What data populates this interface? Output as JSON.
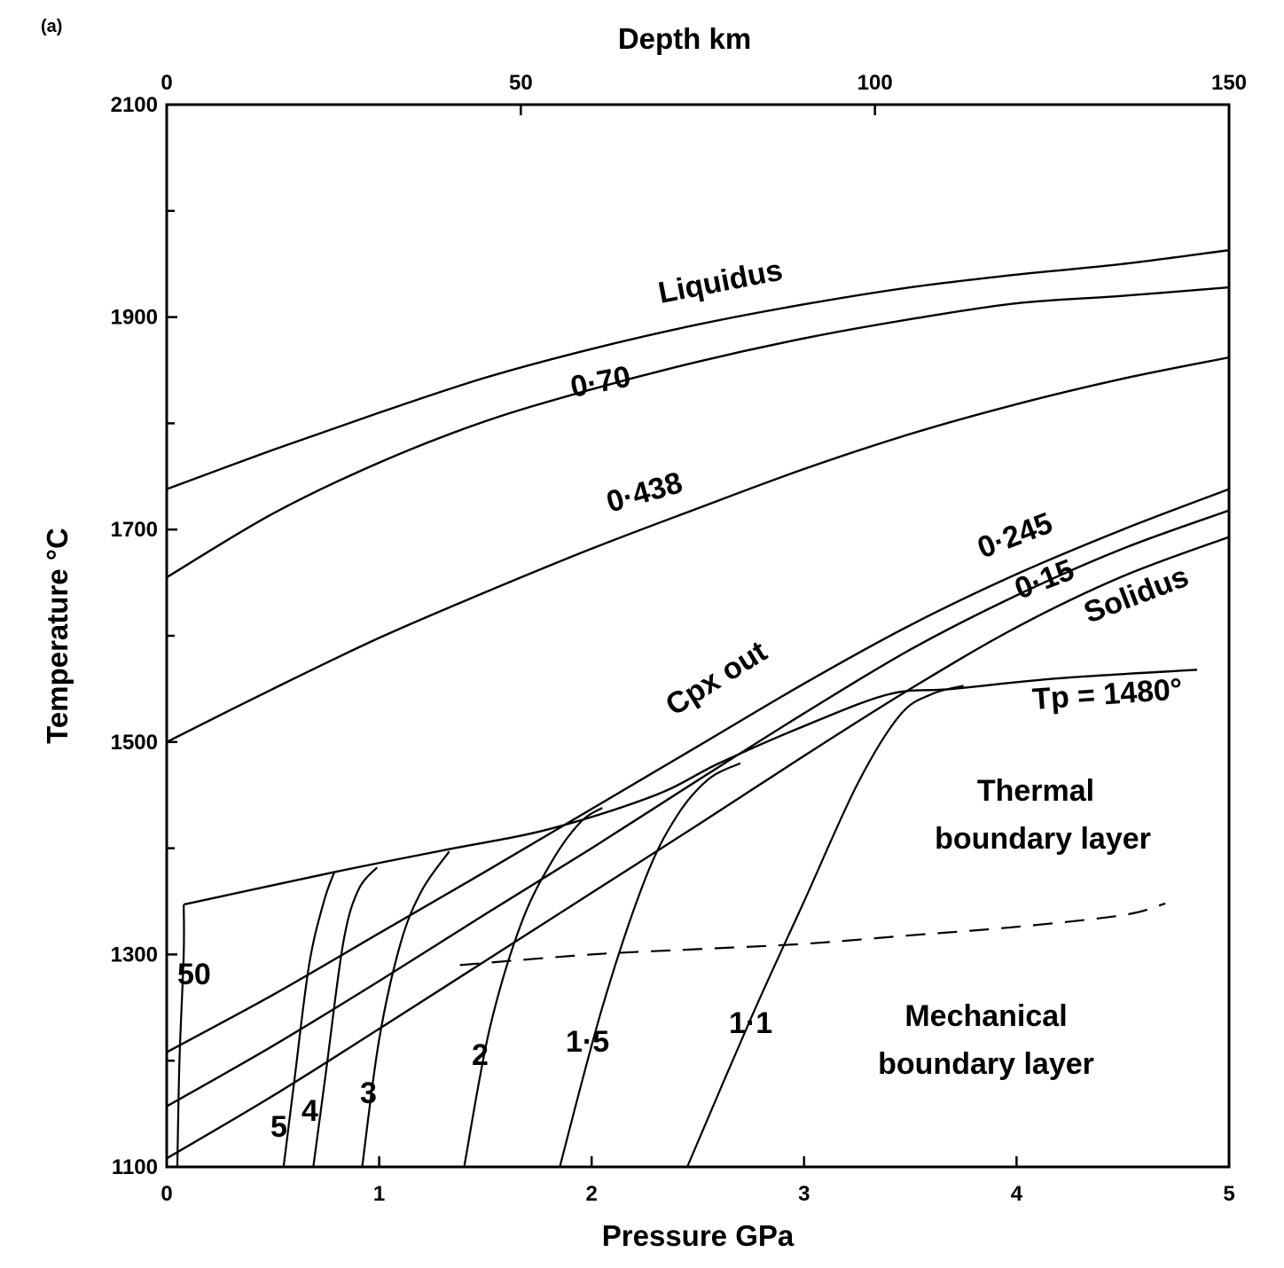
{
  "panel_label": "(a)",
  "chart_data": {
    "type": "line",
    "xlabel": "Pressure GPa",
    "x2label": "Depth km",
    "ylabel": "Temperature °C",
    "xlim": [
      0,
      5
    ],
    "x2lim": [
      0,
      150
    ],
    "ylim": [
      1100,
      2100
    ],
    "x_ticks": [
      0,
      1,
      2,
      3,
      4,
      5
    ],
    "x2_ticks": [
      0,
      50,
      100,
      150
    ],
    "y_ticks": [
      1100,
      1300,
      1500,
      1700,
      1900,
      2100
    ],
    "y_minor_ticks": [
      1200,
      1400,
      1600,
      1800,
      2000
    ],
    "grid": false,
    "melt_fraction_contours": [
      {
        "label": "Liquidus",
        "x": [
          0,
          0.5,
          1,
          1.5,
          2,
          2.5,
          3,
          3.5,
          4,
          4.5,
          5
        ],
        "y": [
          1738,
          1775,
          1810,
          1843,
          1870,
          1893,
          1912,
          1928,
          1940,
          1950,
          1963
        ]
      },
      {
        "label": "0·70",
        "x": [
          0,
          0.5,
          1,
          1.5,
          2,
          2.5,
          3,
          3.5,
          4,
          4.5,
          5
        ],
        "y": [
          1655,
          1715,
          1763,
          1802,
          1832,
          1858,
          1880,
          1898,
          1913,
          1920,
          1928
        ]
      },
      {
        "label": "0·438",
        "x": [
          0,
          0.5,
          1,
          1.5,
          2,
          2.5,
          3,
          3.5,
          4,
          4.5,
          5
        ],
        "y": [
          1500,
          1550,
          1598,
          1641,
          1682,
          1720,
          1757,
          1790,
          1818,
          1842,
          1862
        ]
      },
      {
        "label": "0·245",
        "x": [
          0,
          0.5,
          1,
          1.5,
          2,
          2.5,
          3,
          3.5,
          4,
          4.5,
          5
        ],
        "y": [
          1208,
          1262,
          1320,
          1378,
          1437,
          1496,
          1555,
          1610,
          1658,
          1700,
          1738
        ]
      },
      {
        "label": "0·15",
        "x": [
          0,
          0.5,
          1,
          1.5,
          2,
          2.5,
          3,
          3.5,
          4,
          4.5,
          5
        ],
        "y": [
          1157,
          1214,
          1275,
          1338,
          1400,
          1464,
          1527,
          1587,
          1638,
          1682,
          1718
        ]
      },
      {
        "label": "Solidus",
        "x": [
          0,
          0.5,
          1,
          1.5,
          2,
          2.5,
          3,
          3.5,
          4,
          4.5,
          5
        ],
        "y": [
          1108,
          1167,
          1230,
          1294,
          1358,
          1422,
          1487,
          1550,
          1608,
          1656,
          1693
        ]
      }
    ],
    "adiabat": {
      "label": "Tp = 1480°",
      "x": [
        0.08,
        0.8,
        1.3,
        1.8,
        2.3,
        2.6,
        3.0,
        3.4,
        3.7,
        4.2,
        4.85
      ],
      "y": [
        1347,
        1378,
        1398,
        1418,
        1450,
        1480,
        1515,
        1545,
        1550,
        1560,
        1568
      ]
    },
    "lithosphere_paths": [
      {
        "label": "50",
        "x": [
          0.05,
          0.06,
          0.08,
          0.08
        ],
        "y": [
          1100,
          1200,
          1300,
          1347
        ]
      },
      {
        "label": "5",
        "x": [
          0.55,
          0.6,
          0.67,
          0.74,
          0.79
        ],
        "y": [
          1100,
          1180,
          1290,
          1350,
          1378
        ]
      },
      {
        "label": "4",
        "x": [
          0.69,
          0.75,
          0.83,
          0.9,
          0.99
        ],
        "y": [
          1100,
          1190,
          1310,
          1360,
          1382
        ]
      },
      {
        "label": "3",
        "x": [
          0.92,
          1.0,
          1.1,
          1.2,
          1.33
        ],
        "y": [
          1100,
          1220,
          1310,
          1360,
          1397
        ]
      },
      {
        "label": "2",
        "x": [
          1.4,
          1.52,
          1.67,
          1.82,
          1.95,
          2.05
        ],
        "y": [
          1100,
          1230,
          1330,
          1390,
          1425,
          1438
        ]
      },
      {
        "label": "1·5",
        "x": [
          1.85,
          2.05,
          2.25,
          2.4,
          2.55,
          2.7
        ],
        "y": [
          1100,
          1250,
          1370,
          1430,
          1465,
          1480
        ]
      },
      {
        "label": "1·1",
        "x": [
          2.45,
          2.75,
          3.0,
          3.25,
          3.45,
          3.6,
          3.75
        ],
        "y": [
          1100,
          1240,
          1350,
          1460,
          1525,
          1545,
          1553
        ]
      }
    ],
    "boundary_layer_divider": {
      "style": "dashed",
      "x": [
        1.38,
        2.0,
        2.5,
        3.0,
        3.5,
        4.0,
        4.5,
        4.7
      ],
      "y": [
        1290,
        1300,
        1305,
        1310,
        1318,
        1326,
        1337,
        1348
      ]
    },
    "annotations": [
      {
        "text": "Cpx out"
      },
      {
        "text": "Thermal"
      },
      {
        "text": "boundary layer"
      },
      {
        "text": "Mechanical"
      },
      {
        "text": "boundary layer"
      }
    ]
  }
}
